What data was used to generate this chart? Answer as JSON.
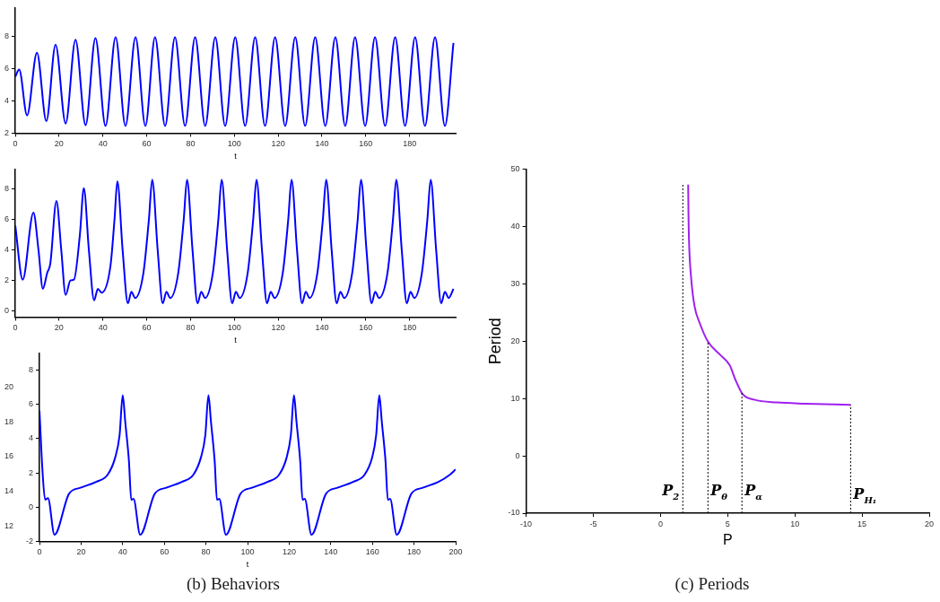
{
  "chart_data": [
    {
      "type": "line",
      "xlabel": "t",
      "xlim": [
        0,
        201
      ],
      "xticks": [
        0,
        20,
        40,
        60,
        80,
        100,
        120,
        140,
        160,
        180
      ],
      "ylim": [
        2,
        9.8
      ],
      "yticks": [
        2,
        4,
        6,
        8
      ],
      "grid": false,
      "legend": false,
      "marker": "none",
      "series": [
        {
          "color": "#0000ff",
          "x": [
            0,
            1.8,
            5.4,
            9.9,
            14.2,
            18.4,
            23.0,
            27.5,
            32.1,
            36.6,
            41.2,
            45.8,
            50.3,
            54.9,
            59.4,
            63.8,
            68.4,
            72.9,
            77.5,
            82.1,
            86.7,
            91.3,
            95.8,
            100.4,
            104.9,
            109.5,
            114.0,
            118.6,
            123.2,
            127.8,
            132.3,
            136.9,
            141.5,
            146.1,
            150.6,
            155.1,
            159.7,
            164.2,
            168.8,
            173.4,
            177.9,
            182.5,
            187.0,
            191.6,
            196.1,
            200
          ],
          "values": [
            5.5,
            5.95,
            3.1,
            7.0,
            2.75,
            7.5,
            2.6,
            7.8,
            2.5,
            7.9,
            2.45,
            7.95,
            2.45,
            7.95,
            2.45,
            7.95,
            2.45,
            7.95,
            2.45,
            7.95,
            2.45,
            7.95,
            2.45,
            7.95,
            2.45,
            7.95,
            2.45,
            7.95,
            2.45,
            7.95,
            2.45,
            7.95,
            2.45,
            7.95,
            2.45,
            7.95,
            2.45,
            7.95,
            2.45,
            7.95,
            2.45,
            7.95,
            2.45,
            7.95,
            2.45,
            7.6
          ]
        }
      ]
    },
    {
      "type": "line",
      "xlabel": "t",
      "xlim": [
        0,
        201
      ],
      "xticks": [
        0,
        20,
        40,
        60,
        80,
        100,
        120,
        140,
        160,
        180
      ],
      "ylim": [
        -0.4,
        9.3
      ],
      "yticks": [
        0,
        2,
        4,
        6,
        8
      ],
      "grid": false,
      "legend": false,
      "marker": "none",
      "series": [
        {
          "color": "#0000ff",
          "x": [
            0,
            3.4,
            8.3,
            10.6,
            12.6,
            14.6,
            16.0,
            18.8,
            21.0,
            23.0,
            25.2,
            26.8,
            29.5,
            31.3,
            33.6,
            36.0,
            37.7,
            39.4,
            43.5,
            45.3,
            46.6,
            49.0,
            51.4,
            53.0,
            54.7,
            58.5,
            61.0,
            62.5,
            65.0,
            67.3,
            69.0,
            70.7,
            74.4,
            76.9,
            78.4,
            80.9,
            83.2,
            84.9,
            86.6,
            90.2,
            92.7,
            94.2,
            96.7,
            99.0,
            100.7,
            102.4,
            106.1,
            108.6,
            110.1,
            112.6,
            114.9,
            116.6,
            118.3,
            122.1,
            124.6,
            126.1,
            128.6,
            130.9,
            132.6,
            134.3,
            137.9,
            140.4,
            141.9,
            144.4,
            146.7,
            148.4,
            150.1,
            153.8,
            156.3,
            157.8,
            160.3,
            162.6,
            164.3,
            166.0,
            169.9,
            172.4,
            173.9,
            176.4,
            178.7,
            180.4,
            182.1,
            185.6,
            188.1,
            189.6,
            192.1,
            194.4,
            196.1,
            197.8,
            200
          ],
          "values": [
            5.6,
            2.05,
            6.45,
            4.0,
            1.45,
            2.5,
            3.1,
            7.2,
            4.0,
            1.05,
            2.0,
            2.05,
            5.0,
            8.05,
            4.0,
            0.7,
            1.45,
            1.2,
            3.0,
            6.0,
            8.5,
            4.0,
            0.5,
            1.25,
            0.85,
            2.5,
            6.0,
            8.6,
            4.0,
            0.5,
            1.25,
            0.85,
            2.5,
            6.0,
            8.6,
            4.0,
            0.5,
            1.25,
            0.85,
            2.5,
            6.0,
            8.6,
            4.0,
            0.5,
            1.25,
            0.85,
            2.5,
            6.0,
            8.6,
            4.0,
            0.5,
            1.25,
            0.85,
            2.5,
            6.0,
            8.6,
            4.0,
            0.5,
            1.25,
            0.85,
            2.5,
            6.0,
            8.6,
            4.0,
            0.5,
            1.25,
            0.85,
            2.5,
            6.0,
            8.6,
            4.0,
            0.5,
            1.25,
            0.85,
            2.5,
            6.0,
            8.6,
            4.0,
            0.5,
            1.25,
            0.85,
            2.5,
            6.0,
            8.6,
            4.0,
            0.5,
            1.25,
            0.85,
            1.45
          ]
        }
      ]
    },
    {
      "type": "line",
      "xlabel": "t",
      "xlim": [
        0,
        200
      ],
      "xticks": [
        0,
        20,
        40,
        60,
        80,
        100,
        120,
        140,
        160,
        180,
        200
      ],
      "ylim": [
        -2,
        9
      ],
      "yticks": [
        -2,
        0,
        2,
        4,
        6,
        8
      ],
      "y2lim": [
        11.1,
        22
      ],
      "y2ticks": [
        12,
        14,
        16,
        18,
        20
      ],
      "grid": false,
      "legend": false,
      "marker": "none",
      "annotations": [
        "(b) Behaviors"
      ],
      "series": [
        {
          "color": "#0000ff",
          "x": [
            0,
            1.5,
            2.7,
            4.1,
            7.2,
            14.2,
            19.7,
            27.2,
            32.8,
            36.3,
            38.5,
            40.0,
            41.2,
            43.0,
            44.1,
            45.2,
            48.4,
            55.4,
            60.9,
            68.4,
            74.0,
            77.5,
            79.7,
            81.2,
            82.4,
            84.2,
            85.3,
            86.4,
            89.6,
            96.6,
            102.1,
            109.6,
            115.2,
            118.7,
            120.8,
            122.3,
            123.5,
            125.3,
            126.4,
            127.5,
            130.7,
            137.7,
            143.2,
            150.7,
            156.3,
            159.8,
            161.8,
            163.3,
            164.5,
            166.3,
            167.4,
            168.5,
            171.7,
            178.7,
            184.2,
            191.7,
            197.3,
            200
          ],
          "values": [
            5.63,
            2.0,
            0.43,
            0.52,
            -1.61,
            0.78,
            1.13,
            1.47,
            1.9,
            2.86,
            4.2,
            6.53,
            5.0,
            2.68,
            0.43,
            0.48,
            -1.61,
            0.78,
            1.13,
            1.47,
            1.9,
            2.86,
            4.2,
            6.53,
            5.0,
            2.68,
            0.43,
            0.48,
            -1.61,
            0.78,
            1.13,
            1.47,
            1.9,
            2.86,
            4.2,
            6.53,
            5.0,
            2.68,
            0.43,
            0.48,
            -1.61,
            0.78,
            1.13,
            1.47,
            1.9,
            2.86,
            4.2,
            6.53,
            5.0,
            2.68,
            0.43,
            0.48,
            -1.61,
            0.78,
            1.13,
            1.47,
            1.9,
            2.2
          ]
        }
      ]
    },
    {
      "type": "line",
      "xlabel": "P",
      "ylabel": "Period",
      "xlim": [
        -10,
        20
      ],
      "xticks": [
        -10,
        -5,
        0,
        5,
        10,
        15,
        20
      ],
      "ylim": [
        -10,
        50
      ],
      "yticks": [
        -10,
        0,
        10,
        20,
        30,
        40,
        50
      ],
      "grid": false,
      "legend": false,
      "marker": "none",
      "annotations": [
        "(c) Periods"
      ],
      "ref_lines": [
        {
          "axis": "x",
          "value": 1.66,
          "label": "P$_{2}$"
        },
        {
          "axis": "x",
          "value": 3.53,
          "label": "P$_{θ}$"
        },
        {
          "axis": "x",
          "value": 6.06,
          "label": "P$_{α}$"
        },
        {
          "axis": "x",
          "value": 14.15,
          "label": "P$_{H₁}$"
        }
      ],
      "series": [
        {
          "color": "#a020f0",
          "x": [
            2.06,
            2.08,
            2.13,
            2.28,
            2.53,
            2.91,
            3.51,
            4.4,
            5.15,
            5.57,
            6.1,
            6.96,
            8.66,
            10.8,
            14.15
          ],
          "values": [
            47.3,
            42.4,
            36.9,
            31.0,
            26.1,
            23.2,
            20.0,
            17.7,
            15.8,
            13.3,
            10.8,
            9.8,
            9.3,
            9.1,
            8.9
          ]
        }
      ]
    }
  ]
}
